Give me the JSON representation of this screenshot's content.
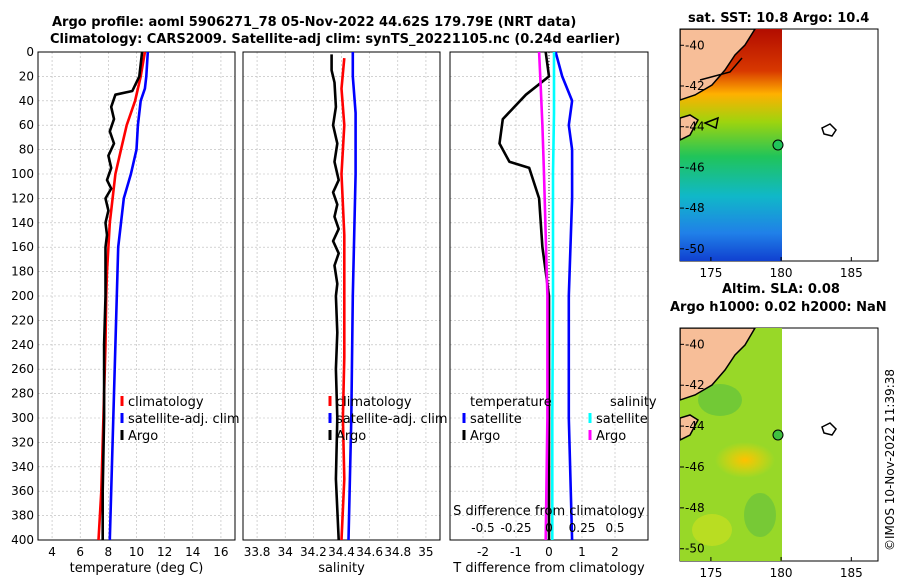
{
  "titles": {
    "line1": "Argo profile: aoml 5906271_78 05-Nov-2022 44.62S 179.79E (NRT data)",
    "line2": "Climatology: CARS2009. Satellite-adj clim: synTS_20221105.nc (0.24d earlier)",
    "sst": "sat. SST: 10.8 Argo: 10.4",
    "sla": "Altim. SLA: 0.08",
    "h": "Argo h1000: 0.02 h2000: NaN"
  },
  "credit": "©IMOS 10-Nov-2022 11:39:38",
  "colors": {
    "clim": "#ff0000",
    "sat": "#0000ff",
    "argo": "#000000",
    "satS": "#00ffff",
    "argoS": "#ff00ff"
  },
  "chart_data": [
    {
      "type": "line",
      "title": "Temperature profile",
      "xlabel": "temperature (deg C)",
      "ylabel": "depth",
      "xlim": [
        3,
        17
      ],
      "ylim": [
        400,
        0
      ],
      "xticks": [
        4,
        6,
        8,
        10,
        12,
        14,
        16
      ],
      "yticks": [
        0,
        20,
        40,
        60,
        80,
        100,
        120,
        140,
        160,
        180,
        200,
        220,
        240,
        260,
        280,
        300,
        320,
        340,
        360,
        380,
        400
      ],
      "legend": [
        "climatology",
        "satellite-adj. clim",
        "Argo"
      ],
      "series": [
        {
          "name": "climatology",
          "color": "clim",
          "points": [
            [
              10.6,
              0
            ],
            [
              10.3,
              20
            ],
            [
              9.9,
              40
            ],
            [
              9.3,
              60
            ],
            [
              8.9,
              80
            ],
            [
              8.5,
              100
            ],
            [
              8.3,
              120
            ],
            [
              8.1,
              140
            ],
            [
              8.0,
              160
            ],
            [
              7.9,
              180
            ],
            [
              7.85,
              200
            ],
            [
              7.8,
              240
            ],
            [
              7.7,
              280
            ],
            [
              7.6,
              320
            ],
            [
              7.5,
              360
            ],
            [
              7.3,
              400
            ]
          ]
        },
        {
          "name": "satellite-adj. clim",
          "color": "sat",
          "points": [
            [
              10.8,
              0
            ],
            [
              10.7,
              20
            ],
            [
              10.6,
              30
            ],
            [
              10.3,
              40
            ],
            [
              10.1,
              60
            ],
            [
              10.0,
              80
            ],
            [
              9.6,
              100
            ],
            [
              9.1,
              120
            ],
            [
              8.9,
              140
            ],
            [
              8.7,
              160
            ],
            [
              8.6,
              200
            ],
            [
              8.5,
              240
            ],
            [
              8.4,
              280
            ],
            [
              8.3,
              320
            ],
            [
              8.2,
              360
            ],
            [
              8.1,
              400
            ]
          ]
        },
        {
          "name": "Argo",
          "color": "argo",
          "points": [
            [
              10.4,
              0
            ],
            [
              10.3,
              10
            ],
            [
              10.2,
              20
            ],
            [
              9.7,
              32
            ],
            [
              8.5,
              35
            ],
            [
              8.2,
              45
            ],
            [
              8.4,
              55
            ],
            [
              8.1,
              65
            ],
            [
              8.4,
              75
            ],
            [
              8.0,
              85
            ],
            [
              8.2,
              95
            ],
            [
              7.9,
              105
            ],
            [
              8.2,
              112
            ],
            [
              7.8,
              120
            ],
            [
              8.0,
              130
            ],
            [
              7.8,
              140
            ],
            [
              7.9,
              150
            ],
            [
              7.8,
              160
            ],
            [
              7.8,
              200
            ],
            [
              7.7,
              240
            ],
            [
              7.7,
              300
            ],
            [
              7.6,
              360
            ],
            [
              7.6,
              400
            ]
          ]
        }
      ]
    },
    {
      "type": "line",
      "title": "Salinity profile",
      "xlabel": "salinity",
      "xlim": [
        33.7,
        35.1
      ],
      "ylim": [
        400,
        0
      ],
      "xticks": [
        33.8,
        34,
        34.2,
        34.4,
        34.6,
        34.8,
        35
      ],
      "legend": [
        "climatology",
        "satellite-adj. clim",
        "Argo"
      ],
      "series": [
        {
          "name": "climatology",
          "color": "clim",
          "points": [
            [
              34.42,
              5
            ],
            [
              34.4,
              30
            ],
            [
              34.42,
              60
            ],
            [
              34.4,
              100
            ],
            [
              34.42,
              150
            ],
            [
              34.42,
              250
            ],
            [
              34.41,
              300
            ],
            [
              34.42,
              350
            ],
            [
              34.4,
              400
            ]
          ]
        },
        {
          "name": "satellite-adj. clim",
          "color": "sat",
          "points": [
            [
              34.48,
              0
            ],
            [
              34.48,
              20
            ],
            [
              34.5,
              50
            ],
            [
              34.5,
              100
            ],
            [
              34.49,
              150
            ],
            [
              34.48,
              200
            ],
            [
              34.47,
              300
            ],
            [
              34.46,
              350
            ],
            [
              34.45,
              400
            ]
          ]
        },
        {
          "name": "Argo",
          "color": "argo",
          "points": [
            [
              34.33,
              2
            ],
            [
              34.33,
              15
            ],
            [
              34.35,
              25
            ],
            [
              34.36,
              45
            ],
            [
              34.34,
              60
            ],
            [
              34.37,
              75
            ],
            [
              34.35,
              90
            ],
            [
              34.38,
              105
            ],
            [
              34.34,
              115
            ],
            [
              34.37,
              125
            ],
            [
              34.35,
              135
            ],
            [
              34.38,
              145
            ],
            [
              34.34,
              155
            ],
            [
              34.38,
              165
            ],
            [
              34.35,
              175
            ],
            [
              34.37,
              190
            ],
            [
              34.36,
              200
            ],
            [
              34.37,
              230
            ],
            [
              34.36,
              260
            ],
            [
              34.37,
              300
            ],
            [
              34.36,
              350
            ],
            [
              34.38,
              400
            ]
          ]
        }
      ]
    },
    {
      "type": "line",
      "title": "Difference from climatology",
      "xlabel": "T difference from climatology",
      "xlabel2": "S difference from climatology",
      "xlim": [
        -3,
        3
      ],
      "ylim": [
        400,
        0
      ],
      "xticks": [
        -2,
        -1,
        0,
        1,
        2
      ],
      "xticks2": [
        "-0.5",
        "-0.25",
        "0",
        "0.25",
        "0.5"
      ],
      "legend_temperature": [
        "temperature",
        "satellite",
        "Argo"
      ],
      "legend_salinity": [
        "salinity",
        "satellite",
        "Argo"
      ],
      "series": [
        {
          "name": "T satellite",
          "color": "sat",
          "points": [
            [
              0.2,
              0
            ],
            [
              0.4,
              20
            ],
            [
              0.7,
              40
            ],
            [
              0.6,
              60
            ],
            [
              0.7,
              80
            ],
            [
              0.7,
              120
            ],
            [
              0.6,
              200
            ],
            [
              0.6,
              300
            ],
            [
              0.7,
              400
            ]
          ]
        },
        {
          "name": "T Argo",
          "color": "argo",
          "points": [
            [
              -0.1,
              0
            ],
            [
              0.0,
              20
            ],
            [
              -0.7,
              35
            ],
            [
              -1.4,
              55
            ],
            [
              -1.5,
              75
            ],
            [
              -1.2,
              90
            ],
            [
              -0.6,
              95
            ],
            [
              -0.3,
              120
            ],
            [
              -0.2,
              160
            ],
            [
              0.0,
              200
            ],
            [
              0.0,
              400
            ]
          ]
        },
        {
          "name": "S satellite",
          "color": "satS",
          "points": [
            [
              0.15,
              0
            ],
            [
              0.15,
              50
            ],
            [
              0.12,
              100
            ],
            [
              0.12,
              200
            ],
            [
              0.1,
              300
            ],
            [
              0.1,
              400
            ]
          ]
        },
        {
          "name": "S Argo",
          "color": "argoS",
          "points": [
            [
              -0.3,
              0
            ],
            [
              -0.25,
              30
            ],
            [
              -0.2,
              60
            ],
            [
              -0.15,
              100
            ],
            [
              -0.1,
              150
            ],
            [
              -0.05,
              200
            ],
            [
              -0.05,
              300
            ],
            [
              -0.1,
              400
            ]
          ]
        }
      ]
    }
  ],
  "maps": {
    "sst": {
      "xticks": [
        175,
        180,
        185
      ],
      "yticks": [
        -40,
        -42,
        -44,
        -46,
        -48,
        -50
      ]
    },
    "sla": {
      "xticks": [
        175,
        180,
        185
      ],
      "yticks": [
        -40,
        -42,
        -44,
        -46,
        -48,
        -50
      ]
    }
  }
}
